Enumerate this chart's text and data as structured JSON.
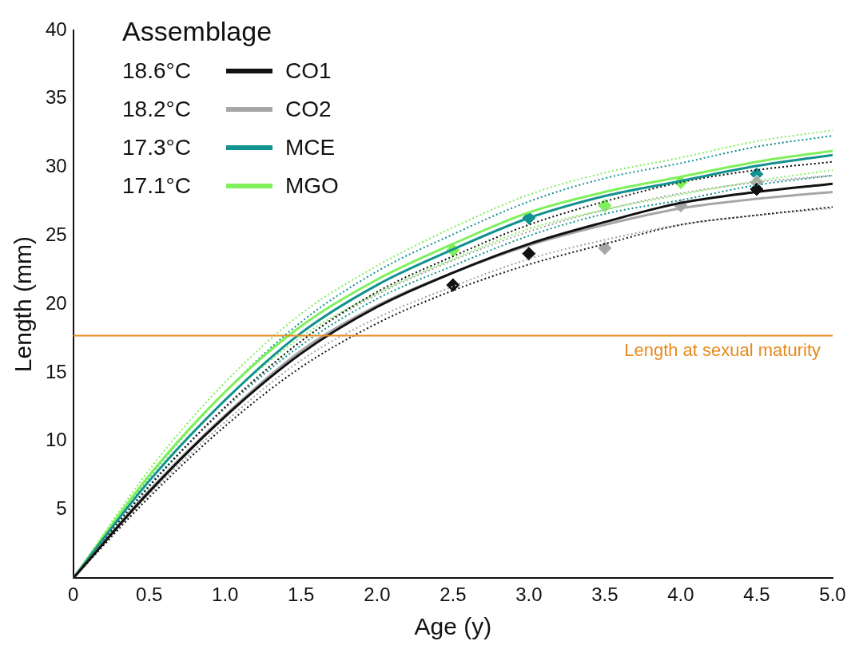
{
  "chart_data": {
    "type": "line",
    "xlabel": "Age (y)",
    "ylabel": "Length (mm)",
    "legend_title": "Assemblage",
    "legend": "top left",
    "grid": false,
    "xlim": [
      0,
      5
    ],
    "ylim": [
      0,
      40
    ],
    "xticks": [
      0,
      0.5,
      {
        "value": 1,
        "label": "1.0"
      },
      1.5,
      {
        "value": 2,
        "label": "2.0"
      },
      2.5,
      {
        "value": 3,
        "label": "3.0"
      },
      3.5,
      {
        "value": 4,
        "label": "4.0"
      },
      4.5,
      {
        "value": 5,
        "label": "5.0"
      }
    ],
    "yticks": [
      5,
      10,
      15,
      20,
      25,
      30,
      35,
      40
    ],
    "annotations": [
      "18.6°C",
      "18.2°C",
      "17.3°C",
      "17.1°C"
    ],
    "ref_lines": [
      {
        "axis": "y",
        "value": 17.7,
        "label": "Length at sexual maturity",
        "color": "#e8891c"
      }
    ],
    "series": [
      {
        "name": "CO1",
        "color": "#111111",
        "x": [
          0,
          0.5,
          1,
          1.5,
          2,
          2.5,
          3,
          3.5,
          4,
          4.5,
          5
        ],
        "values": [
          0,
          6.3,
          11.8,
          16.4,
          19.8,
          22.3,
          24.4,
          26.0,
          27.4,
          28.2,
          28.8
        ]
      },
      {
        "name": "CO2",
        "color": "#a6a6a6",
        "x": [
          0,
          0.5,
          1,
          1.5,
          2,
          2.5,
          3,
          3.5,
          4,
          4.5,
          5
        ],
        "values": [
          0,
          6.4,
          11.9,
          16.6,
          19.9,
          22.3,
          24.3,
          25.8,
          27.0,
          27.7,
          28.2
        ]
      },
      {
        "name": "MCE",
        "color": "#11918f",
        "x": [
          0,
          0.5,
          1,
          1.5,
          2,
          2.5,
          3,
          3.5,
          4,
          4.5,
          5
        ],
        "values": [
          0,
          7.1,
          13.0,
          17.9,
          21.4,
          24.0,
          26.3,
          27.9,
          29.0,
          30.1,
          30.9
        ]
      },
      {
        "name": "MGO",
        "color": "#7ff05a",
        "x": [
          0,
          0.5,
          1,
          1.5,
          2,
          2.5,
          3,
          3.5,
          4,
          4.5,
          5
        ],
        "values": [
          0,
          7.5,
          13.6,
          18.4,
          21.8,
          24.4,
          26.7,
          28.2,
          29.3,
          30.4,
          31.2
        ]
      },
      {
        "line_style": "dotted",
        "color": "#111111",
        "x": [
          0,
          0.5,
          1,
          1.5,
          2,
          2.5,
          3,
          3.5,
          4,
          4.5,
          5
        ],
        "values": [
          0,
          6.7,
          12.5,
          17.3,
          20.9,
          23.5,
          25.8,
          27.5,
          28.9,
          29.8,
          30.4
        ]
      },
      {
        "line_style": "dotted",
        "color": "#111111",
        "x": [
          0,
          0.5,
          1,
          1.5,
          2,
          2.5,
          3,
          3.5,
          4,
          4.5,
          5
        ],
        "values": [
          0,
          5.9,
          11.1,
          15.4,
          18.6,
          21.0,
          22.9,
          24.4,
          25.8,
          26.5,
          27.1
        ]
      },
      {
        "line_style": "dotted",
        "color": "#a6a6a6",
        "x": [
          0,
          0.5,
          1,
          1.5,
          2,
          2.5,
          3,
          3.5,
          4,
          4.5,
          5
        ],
        "values": [
          0,
          6.7,
          12.4,
          17.3,
          20.7,
          23.2,
          25.3,
          26.9,
          28.1,
          28.9,
          29.4
        ]
      },
      {
        "line_style": "dotted",
        "color": "#a6a6a6",
        "x": [
          0,
          0.5,
          1,
          1.5,
          2,
          2.5,
          3,
          3.5,
          4,
          4.5,
          5
        ],
        "values": [
          0,
          6.1,
          11.4,
          15.9,
          19.0,
          21.3,
          23.3,
          24.7,
          25.8,
          26.5,
          27.0
        ]
      },
      {
        "line_style": "dotted",
        "color": "#11918f",
        "x": [
          0,
          0.5,
          1,
          1.5,
          2,
          2.5,
          3,
          3.5,
          4,
          4.5,
          5
        ],
        "values": [
          0,
          7.4,
          13.6,
          18.7,
          22.4,
          25.1,
          27.5,
          29.2,
          30.3,
          31.5,
          32.3
        ]
      },
      {
        "line_style": "dotted",
        "color": "#11918f",
        "x": [
          0,
          0.5,
          1,
          1.5,
          2,
          2.5,
          3,
          3.5,
          4,
          4.5,
          5
        ],
        "values": [
          0,
          6.8,
          12.4,
          17.0,
          20.4,
          22.8,
          25.0,
          26.6,
          27.6,
          28.7,
          29.4
        ]
      },
      {
        "line_style": "dotted",
        "color": "#7ff05a",
        "x": [
          0,
          0.5,
          1,
          1.5,
          2,
          2.5,
          3,
          3.5,
          4,
          4.5,
          5
        ],
        "values": [
          0,
          7.9,
          14.3,
          19.3,
          22.8,
          25.6,
          28.0,
          29.6,
          30.7,
          31.9,
          32.7
        ]
      },
      {
        "line_style": "dotted",
        "color": "#7ff05a",
        "x": [
          0,
          0.5,
          1,
          1.5,
          2,
          2.5,
          3,
          3.5,
          4,
          4.5,
          5
        ],
        "values": [
          0,
          7.2,
          13.0,
          17.6,
          20.8,
          23.3,
          25.5,
          26.9,
          28.0,
          29.0,
          29.8
        ]
      },
      {
        "type": "scatter",
        "marker": "diamond",
        "color": "#111111",
        "x": [
          2.5,
          3,
          4.5
        ],
        "values": [
          21.4,
          23.7,
          28.4
        ]
      },
      {
        "type": "scatter",
        "marker": "diamond",
        "color": "#a6a6a6",
        "x": [
          3.5,
          4,
          4.5
        ],
        "values": [
          24.1,
          27.2,
          28.9
        ]
      },
      {
        "type": "scatter",
        "marker": "diamond",
        "color": "#11918f",
        "x": [
          3,
          4.5
        ],
        "values": [
          26.3,
          29.5
        ]
      },
      {
        "type": "scatter",
        "marker": "diamond",
        "color": "#7ff05a",
        "x": [
          2.5,
          3.5,
          4
        ],
        "values": [
          23.95,
          27.2,
          28.9
        ]
      }
    ]
  }
}
